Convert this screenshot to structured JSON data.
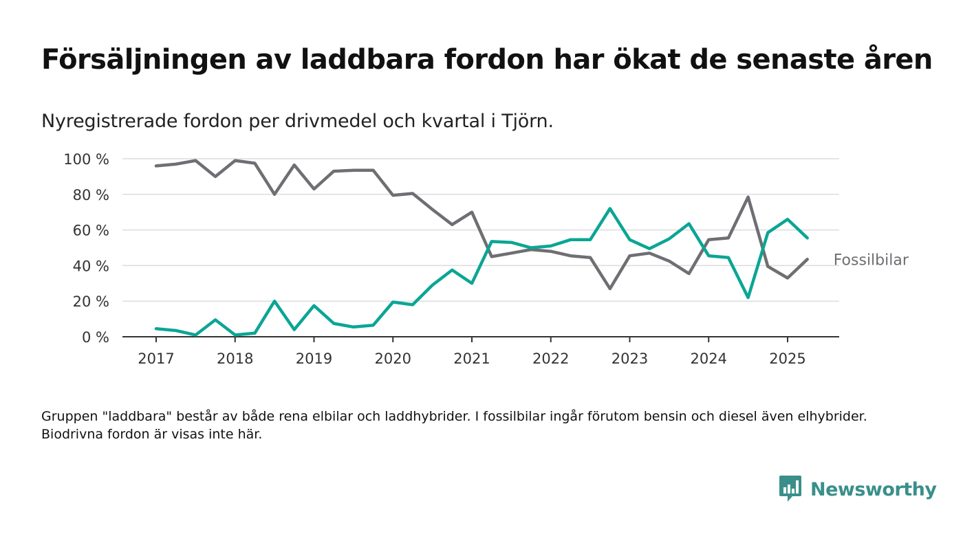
{
  "header": {
    "title": "Försäljningen av laddbara fordon har ökat de senaste åren",
    "subtitle": "Nyregistrerade fordon per drivmedel och kvartal i Tjörn."
  },
  "footnote": "Gruppen \"laddbara\" består av både rena elbilar och laddhybrider. I fossilbilar ingår förutom bensin och diesel även elhybrider. Biodrivna fordon är visas inte här.",
  "brand": {
    "name": "Newsworthy",
    "color": "#3a8f8a",
    "icon": "newsworthy-logo-icon"
  },
  "chart_data": {
    "type": "line",
    "x": [
      2017.0,
      2017.25,
      2017.5,
      2017.75,
      2018.0,
      2018.25,
      2018.5,
      2018.75,
      2019.0,
      2019.25,
      2019.5,
      2019.75,
      2020.0,
      2020.25,
      2020.5,
      2020.75,
      2021.0,
      2021.25,
      2021.5,
      2021.75,
      2022.0,
      2022.25,
      2022.5,
      2022.75,
      2023.0,
      2023.25,
      2023.5,
      2023.75,
      2024.0,
      2024.25,
      2024.5,
      2024.75,
      2025.0,
      2025.25
    ],
    "x_ticks": [
      "2017",
      "2018",
      "2019",
      "2020",
      "2021",
      "2022",
      "2023",
      "2024",
      "2025"
    ],
    "y_ticks": [
      "0 %",
      "20 %",
      "40 %",
      "60 %",
      "80 %",
      "100 %"
    ],
    "ylim": [
      0,
      100
    ],
    "grid": true,
    "series": [
      {
        "name": "Fossilbilar",
        "color": "#6e6e73",
        "values": [
          96,
          97,
          99,
          90,
          99,
          97.5,
          80,
          96.5,
          83,
          93,
          93.5,
          93.5,
          79.5,
          80.5,
          71.5,
          63,
          70,
          45,
          47,
          49,
          48,
          45.5,
          44.5,
          27,
          45.5,
          47,
          42.5,
          35.5,
          54.5,
          55.5,
          78.5,
          39.5,
          33,
          43.5
        ]
      },
      {
        "name": "",
        "color": "#0ba595",
        "values": [
          4.5,
          3.5,
          1,
          9.5,
          1,
          2,
          20,
          4,
          17.5,
          7.5,
          5.5,
          6.5,
          19.5,
          18,
          29,
          37.5,
          30,
          53.5,
          53,
          50,
          51,
          54.5,
          54.5,
          72,
          54.5,
          49.5,
          55,
          63.5,
          45.5,
          44.5,
          22,
          58.5,
          66,
          55.5
        ]
      }
    ]
  }
}
